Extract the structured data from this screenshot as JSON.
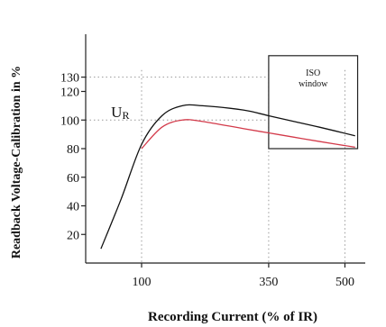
{
  "chart_data": {
    "type": "line",
    "title": "",
    "xlabel": "Recording Current (% of IR)",
    "ylabel": "Readback Voltage-Calibration in %",
    "x_ticks": [
      100,
      350,
      500
    ],
    "y_ticks": [
      20,
      40,
      60,
      80,
      100,
      120,
      130
    ],
    "xlim": [
      -10,
      540
    ],
    "ylim": [
      0,
      160
    ],
    "grid": false,
    "series": [
      {
        "name": "",
        "color": "#111111",
        "x": [
          20,
          60,
          100,
          140,
          180,
          220,
          300,
          350,
          400,
          450,
          520
        ],
        "y": [
          10,
          45,
          83,
          103,
          110,
          110,
          107,
          103,
          99,
          95,
          89
        ]
      },
      {
        "name": "",
        "color": "#d33a4a",
        "x": [
          100,
          140,
          180,
          220,
          300,
          350,
          400,
          450,
          520
        ],
        "y": [
          80,
          95,
          100,
          99,
          94,
          91,
          88,
          85,
          81
        ]
      }
    ],
    "guides": {
      "vertical_x": [
        100,
        350,
        500
      ],
      "horizontal_y": [
        130,
        100
      ],
      "color": "#999999"
    },
    "annotations": [
      {
        "text": "U",
        "sub": "R",
        "x": 40,
        "y": 102
      },
      {
        "text": "ISO",
        "line2": "window"
      }
    ],
    "iso_window": {
      "x0": 350,
      "x1": 525,
      "y0": 80,
      "y1": 145
    }
  }
}
